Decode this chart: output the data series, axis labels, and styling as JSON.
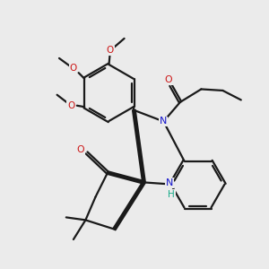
{
  "bg_color": "#ebebeb",
  "line_color": "#1a1a1a",
  "N_color": "#1414cc",
  "O_color": "#cc1414",
  "H_color": "#14aa88",
  "lw": 1.6,
  "figsize": [
    3.0,
    3.0
  ],
  "dpi": 100,
  "xlim": [
    0,
    10
  ],
  "ylim": [
    0,
    10
  ]
}
